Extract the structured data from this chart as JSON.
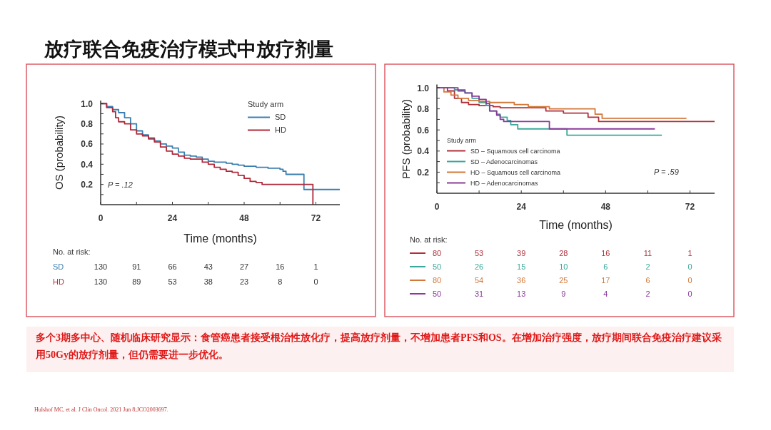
{
  "chart_data": [
    {
      "type": "step",
      "title": "放疗联合免疫治疗模式中放疗剂量",
      "ylabel": "OS (probability)",
      "xlabel": "Time (months)",
      "legend_title": "Study arm",
      "legend": "top right",
      "xlim": [
        0,
        80
      ],
      "ylim": [
        0,
        1.03
      ],
      "xticks": [
        0,
        {
          "value": 12,
          "label": null
        },
        24,
        {
          "value": 36,
          "label": null
        },
        48,
        {
          "value": 60,
          "label": null
        },
        72
      ],
      "yticks": [
        {
          "value": 0.1,
          "label": null
        },
        0.2,
        {
          "value": 0.3,
          "label": null
        },
        0.4,
        {
          "value": 0.5,
          "label": null
        },
        0.6,
        {
          "value": 0.7,
          "label": null
        },
        0.8,
        {
          "value": 0.9,
          "label": null
        },
        {
          "value": 1.0,
          "label": "1.0"
        }
      ],
      "series": [
        {
          "name": "SD",
          "color": "#3a7fb0",
          "x": [
            0,
            2,
            4,
            6,
            8,
            10,
            12,
            14,
            16,
            18,
            20,
            22,
            24,
            26,
            28,
            30,
            32,
            34,
            36,
            38,
            42,
            44,
            46,
            48,
            52,
            56,
            60,
            61,
            62,
            68,
            80
          ],
          "values": [
            1.0,
            0.97,
            0.94,
            0.91,
            0.86,
            0.8,
            0.73,
            0.69,
            0.66,
            0.63,
            0.6,
            0.58,
            0.56,
            0.52,
            0.49,
            0.48,
            0.47,
            0.45,
            0.43,
            0.42,
            0.41,
            0.4,
            0.39,
            0.38,
            0.37,
            0.36,
            0.35,
            0.33,
            0.3,
            0.15,
            0.15
          ]
        },
        {
          "name": "HD",
          "color": "#b02a3a",
          "x": [
            0,
            2,
            4,
            5,
            6,
            8,
            10,
            12,
            14,
            16,
            18,
            20,
            22,
            24,
            26,
            28,
            30,
            34,
            36,
            38,
            40,
            42,
            44,
            46,
            48,
            50,
            52,
            54,
            71
          ],
          "values": [
            1.0,
            0.96,
            0.92,
            0.86,
            0.82,
            0.8,
            0.74,
            0.7,
            0.68,
            0.65,
            0.62,
            0.57,
            0.53,
            0.5,
            0.48,
            0.46,
            0.45,
            0.42,
            0.4,
            0.37,
            0.35,
            0.33,
            0.32,
            0.29,
            0.26,
            0.23,
            0.22,
            0.2,
            0.0
          ]
        }
      ],
      "annotations": [
        "P = .12",
        "No. at risk:",
        "SD 130 91 66 43 27 16 1",
        "HD 130 89 53 38 23 8 0",
        "多个3期多中心、随机临床研究显示：食管癌患者接受根治性放化疗，提高放疗剂量，不增加患者PFS和OS。在增加治疗强度，放疗期间联合免疫治疗建议采用50Gy的放疗剂量，但仍需要进一步优化。",
        "Hulshof MC, et al. J Clin Oncol. 2021 Jun 8;JCO2003697."
      ]
    },
    {
      "type": "step",
      "ylabel": "PFS (probability)",
      "xlabel": "Time (months)",
      "legend_title": "Study arm",
      "legend": "bottom left",
      "xlim": [
        0,
        79
      ],
      "ylim": [
        0,
        1.03
      ],
      "xticks": [
        0,
        {
          "value": 12,
          "label": null
        },
        24,
        {
          "value": 36,
          "label": null
        },
        48,
        {
          "value": 60,
          "label": null
        },
        72
      ],
      "yticks": [
        {
          "value": 0.1,
          "label": null
        },
        0.2,
        {
          "value": 0.3,
          "label": null
        },
        0.4,
        {
          "value": 0.5,
          "label": null
        },
        0.6,
        {
          "value": 0.7,
          "label": null
        },
        0.8,
        {
          "value": 0.9,
          "label": null
        },
        {
          "value": 1.0,
          "label": "1.0"
        }
      ],
      "series": [
        {
          "name": "SD – Squamous cell carcinoma",
          "color": "#b0303a",
          "x": [
            0,
            3,
            5,
            7,
            9,
            12,
            16,
            18,
            31,
            36,
            43,
            46,
            79
          ],
          "values": [
            1.0,
            0.97,
            0.9,
            0.86,
            0.84,
            0.83,
            0.82,
            0.81,
            0.78,
            0.76,
            0.72,
            0.68,
            0.68
          ]
        },
        {
          "name": "SD – Adenocarcinomas",
          "color": "#3aa89a",
          "x": [
            0,
            5,
            8,
            10,
            12,
            14,
            15,
            17,
            18,
            20,
            21,
            23,
            37,
            64
          ],
          "values": [
            1.0,
            0.98,
            0.95,
            0.9,
            0.86,
            0.83,
            0.78,
            0.75,
            0.72,
            0.69,
            0.65,
            0.61,
            0.55,
            0.55
          ]
        },
        {
          "name": "HD – Squamous cell carcinoma",
          "color": "#d2783a",
          "x": [
            0,
            2,
            4,
            6,
            9,
            12,
            15,
            22,
            26,
            32,
            45,
            47,
            71
          ],
          "values": [
            1.0,
            0.96,
            0.93,
            0.9,
            0.88,
            0.87,
            0.86,
            0.84,
            0.82,
            0.8,
            0.75,
            0.71,
            0.71
          ]
        },
        {
          "name": "HD – Adenocarcinomas",
          "color": "#8a3a9a",
          "x": [
            0,
            6,
            8,
            10,
            12,
            14,
            15,
            17,
            18,
            19,
            32,
            62
          ],
          "values": [
            1.0,
            0.97,
            0.95,
            0.92,
            0.89,
            0.85,
            0.78,
            0.74,
            0.7,
            0.68,
            0.61,
            0.61
          ]
        }
      ],
      "annotations": [
        "P = .59",
        "No. at risk:",
        "80 53 39 28 16 11 1",
        "50 26 15 10 6 2 0",
        "80 54 36 25 17 6 0",
        "50 31 13 9 4 2 0"
      ]
    }
  ]
}
